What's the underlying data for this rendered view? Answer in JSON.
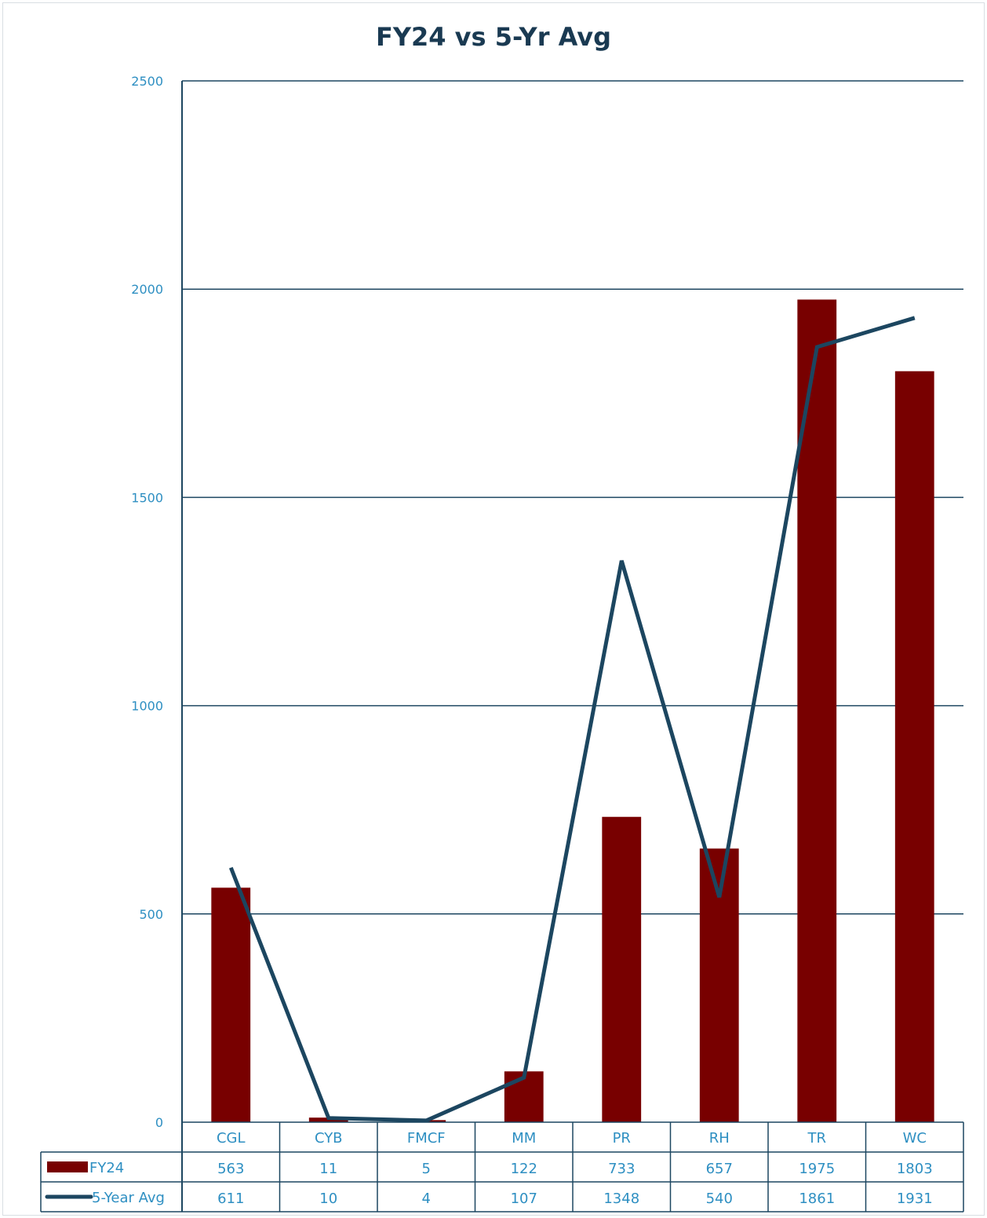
{
  "chart_data": {
    "type": "bar",
    "title": "FY24 vs 5-Yr Avg",
    "categories": [
      "CGL",
      "CYB",
      "FMCF",
      "MM",
      "PR",
      "RH",
      "TR",
      "WC"
    ],
    "series": [
      {
        "name": "FY24",
        "kind": "bar",
        "color": "#780000",
        "values": [
          563,
          11,
          5,
          122,
          733,
          657,
          1975,
          1803
        ]
      },
      {
        "name": "5-Year Avg",
        "kind": "line",
        "color": "#1c4660",
        "values": [
          611,
          10,
          4,
          107,
          1348,
          540,
          1861,
          1931
        ]
      }
    ],
    "ylim": [
      0,
      2500
    ],
    "yticks": [
      0,
      500,
      1000,
      1500,
      2000,
      2500
    ],
    "grid": true,
    "legend": "data-table"
  }
}
